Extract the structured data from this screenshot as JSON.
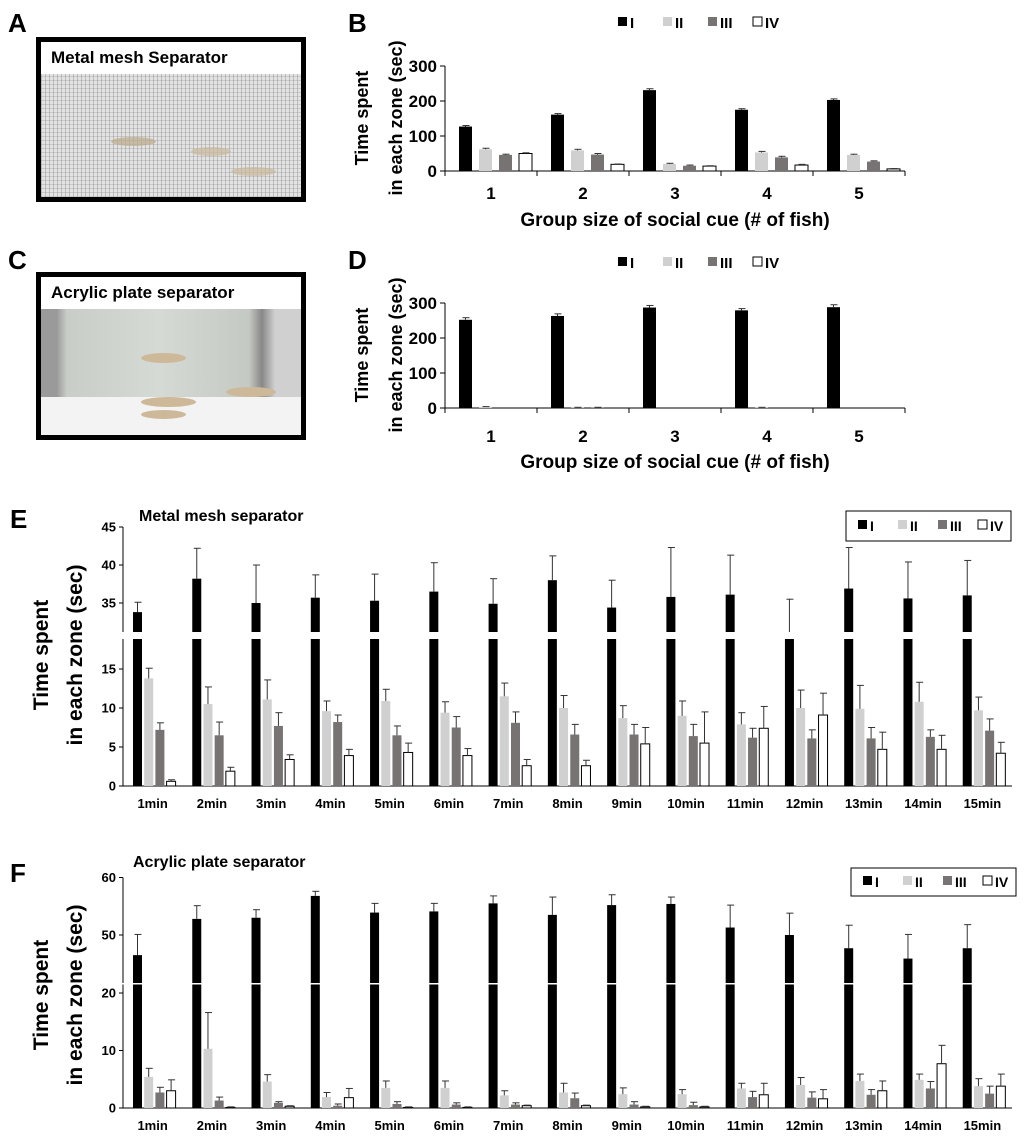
{
  "panels": {
    "A": {
      "label": "A",
      "caption": "Metal mesh Separator"
    },
    "B": {
      "label": "B"
    },
    "C": {
      "label": "C",
      "caption": "Acrylic plate separator"
    },
    "D": {
      "label": "D"
    },
    "E": {
      "label": "E"
    },
    "F": {
      "label": "F"
    }
  },
  "colors": {
    "I": "#000000",
    "II": "#d0d0d0",
    "III": "#777373",
    "IV": "#ffffff"
  },
  "chart_data": [
    {
      "id": "B",
      "type": "bar",
      "title": "",
      "xlabel": "Group size of social cue (# of fish)",
      "ylabel": [
        "Time spent",
        "in each zone (sec)"
      ],
      "ylim": [
        0,
        300
      ],
      "yticks": [
        0,
        100,
        200,
        300
      ],
      "legend": [
        "I",
        "II",
        "III",
        "IV"
      ],
      "legend_position": "top",
      "categories": [
        "1",
        "2",
        "3",
        "4",
        "5"
      ],
      "series": [
        {
          "name": "I",
          "values": [
            127,
            161,
            231,
            175,
            203
          ],
          "errors": [
            3,
            3,
            4,
            3,
            3
          ]
        },
        {
          "name": "II",
          "values": [
            62,
            59,
            20,
            53,
            46
          ],
          "errors": [
            3,
            3,
            2,
            3,
            2
          ]
        },
        {
          "name": "III",
          "values": [
            46,
            47,
            15,
            39,
            27
          ],
          "errors": [
            2,
            3,
            2,
            3,
            2
          ]
        },
        {
          "name": "IV",
          "values": [
            50,
            19,
            14,
            17,
            6
          ],
          "errors": [
            2,
            1,
            1,
            2,
            1
          ]
        }
      ]
    },
    {
      "id": "D",
      "type": "bar",
      "title": "",
      "xlabel": "Group size of social cue (# of fish)",
      "ylabel": [
        "Time spent",
        "in each zone (sec)"
      ],
      "ylim": [
        0,
        300
      ],
      "yticks": [
        0,
        100,
        200,
        300
      ],
      "legend": [
        "I",
        "II",
        "III",
        "IV"
      ],
      "legend_position": "top",
      "categories": [
        "1",
        "2",
        "3",
        "4",
        "5"
      ],
      "series": [
        {
          "name": "I",
          "values": [
            252,
            263,
            287,
            279,
            288
          ],
          "errors": [
            6,
            6,
            6,
            5,
            7
          ]
        },
        {
          "name": "II",
          "values": [
            3,
            1,
            0,
            1,
            0
          ],
          "errors": [
            1,
            1,
            0,
            1,
            0
          ]
        },
        {
          "name": "III",
          "values": [
            0,
            1,
            0,
            0,
            0
          ],
          "errors": [
            0,
            1,
            0,
            0,
            0
          ]
        },
        {
          "name": "IV",
          "values": [
            0,
            0,
            0,
            0,
            0
          ],
          "errors": [
            0,
            0,
            0,
            0,
            0
          ]
        }
      ]
    },
    {
      "id": "E",
      "type": "bar",
      "title": "Metal mesh separator",
      "xlabel": "",
      "ylabel": [
        "Time spent",
        "in each zone (sec)"
      ],
      "ylim": [
        0,
        45
      ],
      "axis_break": [
        20,
        30
      ],
      "yticks": [
        0,
        5,
        10,
        15,
        35,
        40,
        45
      ],
      "legend": [
        "I",
        "II",
        "III",
        "IV"
      ],
      "legend_position": "top-right",
      "categories": [
        "1min",
        "2min",
        "3min",
        "4min",
        "5min",
        "6min",
        "7min",
        "8min",
        "9min",
        "10min",
        "11min",
        "12min",
        "13min",
        "14min",
        "15min"
      ],
      "series": [
        {
          "name": "I",
          "values": [
            33.8,
            38.2,
            35.0,
            35.7,
            35.3,
            36.5,
            34.9,
            38.0,
            34.4,
            35.8,
            36.1,
            30.5,
            36.9,
            35.6,
            36.0
          ],
          "errors": [
            1.3,
            4.0,
            5.0,
            3.0,
            3.5,
            3.8,
            3.3,
            3.2,
            3.6,
            6.5,
            5.2,
            5.0,
            5.4,
            4.8,
            4.6
          ]
        },
        {
          "name": "II",
          "values": [
            13.8,
            10.5,
            11.1,
            9.6,
            10.9,
            9.4,
            11.5,
            10.0,
            8.7,
            9.0,
            7.9,
            10.0,
            9.9,
            10.8,
            9.7
          ]
        },
        {
          "name": "III",
          "values": [
            7.2,
            6.5,
            7.7,
            8.2,
            6.5,
            7.5,
            8.1,
            6.6,
            6.6,
            6.4,
            6.2,
            6.1,
            6.1,
            6.3,
            7.1
          ]
        },
        {
          "name": "IV",
          "values": [
            0.6,
            1.9,
            3.4,
            3.9,
            4.3,
            3.9,
            2.6,
            2.6,
            5.4,
            5.5,
            7.4,
            9.1,
            4.7,
            4.7,
            4.2
          ]
        }
      ],
      "errors_low": {
        "II": [
          1.3,
          2.2,
          2.5,
          1.3,
          1.5,
          1.4,
          1.7,
          1.6,
          1.6,
          1.9,
          1.5,
          2.3,
          3.0,
          2.5,
          1.7
        ],
        "III": [
          0.9,
          1.7,
          1.7,
          0.9,
          1.2,
          1.4,
          1.4,
          1.3,
          1.3,
          1.5,
          1.2,
          1.1,
          1.4,
          0.9,
          1.5
        ],
        "IV": [
          0.2,
          0.5,
          0.6,
          0.8,
          1.2,
          0.9,
          0.8,
          0.7,
          2.1,
          4.0,
          2.8,
          2.8,
          2.2,
          1.8,
          1.4
        ]
      }
    },
    {
      "id": "F",
      "type": "bar",
      "title": "Acrylic plate separator",
      "xlabel": "",
      "ylabel": [
        "Time spent",
        "in each zone (sec)"
      ],
      "ylim": [
        0,
        60
      ],
      "axis_break": [
        20,
        40
      ],
      "yticks": [
        0,
        10,
        20,
        50,
        60
      ],
      "legend": [
        "I",
        "II",
        "III",
        "IV"
      ],
      "legend_position": "top-right",
      "categories": [
        "1min",
        "2min",
        "3min",
        "4min",
        "5min",
        "6min",
        "7min",
        "8min",
        "9min",
        "10min",
        "11min",
        "12min",
        "13min",
        "14min",
        "15min"
      ],
      "series": [
        {
          "name": "I",
          "values": [
            46.5,
            52.8,
            53.0,
            56.8,
            53.9,
            54.1,
            55.5,
            53.5,
            55.2,
            55.4,
            51.3,
            50.0,
            47.7,
            45.9,
            47.7
          ]
        },
        {
          "name": "II",
          "values": [
            5.4,
            10.3,
            4.6,
            1.9,
            3.5,
            3.5,
            2.2,
            2.7,
            2.4,
            2.4,
            3.4,
            4.0,
            4.7,
            4.9,
            3.8
          ]
        },
        {
          "name": "III",
          "values": [
            2.7,
            1.3,
            0.9,
            0.4,
            0.7,
            0.6,
            0.6,
            1.7,
            0.6,
            0.5,
            1.9,
            1.8,
            2.3,
            3.4,
            2.5
          ]
        },
        {
          "name": "IV",
          "values": [
            3.0,
            0.1,
            0.3,
            1.8,
            0.1,
            0.1,
            0.4,
            0.4,
            0.2,
            0.2,
            2.3,
            1.6,
            3.0,
            7.7,
            3.8
          ]
        }
      ],
      "errors": {
        "I": [
          3.6,
          2.3,
          1.4,
          0.8,
          1.6,
          1.4,
          1.3,
          3.1,
          1.8,
          1.2,
          3.9,
          3.8,
          4.0,
          4.2,
          4.1
        ],
        "II": [
          1.5,
          6.3,
          1.2,
          0.8,
          1.2,
          1.2,
          0.8,
          1.6,
          1.1,
          0.8,
          0.9,
          1.3,
          1.2,
          1.0,
          1.3
        ],
        "III": [
          0.9,
          0.6,
          0.2,
          0.3,
          0.4,
          0.3,
          0.3,
          0.9,
          0.5,
          0.5,
          1.0,
          1.0,
          0.9,
          1.2,
          1.3
        ],
        "IV": [
          1.9,
          0.1,
          0.1,
          1.6,
          0.1,
          0.1,
          0.1,
          0.1,
          0.1,
          0.1,
          2.0,
          1.6,
          1.7,
          3.2,
          2.1
        ]
      }
    }
  ]
}
